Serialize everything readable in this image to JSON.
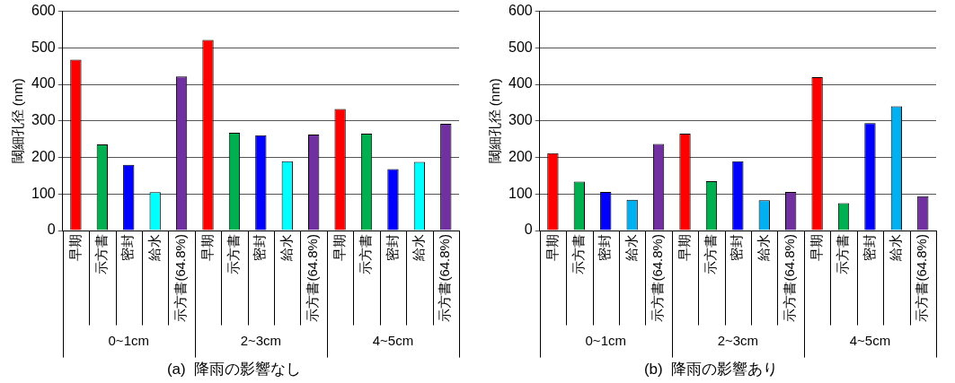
{
  "chart_data": [
    {
      "type": "bar",
      "title": "(a)  降雨の影響なし",
      "ylabel": "閾細孔径 (nm)",
      "categories": [
        "早期",
        "示方書",
        "密封",
        "給水",
        "示方書(64.8%)",
        "早期",
        "示方書",
        "密封",
        "給水",
        "示方書(64.8%)",
        "早期",
        "示方書",
        "密封",
        "給水",
        "示方書(64.8%)"
      ],
      "values": [
        468,
        236,
        180,
        105,
        422,
        522,
        268,
        261,
        190,
        263,
        333,
        265,
        168,
        188,
        292
      ],
      "colors": [
        "#ff0000",
        "#00b050",
        "#0000ff",
        "#00ffff",
        "#7030a0",
        "#ff0000",
        "#00b050",
        "#0000ff",
        "#00ffff",
        "#7030a0",
        "#ff0000",
        "#00b050",
        "#0000ff",
        "#00ffff",
        "#7030a0"
      ],
      "annotations": [
        "0~1cm",
        "2~3cm",
        "4~5cm"
      ],
      "ylim": [
        0,
        600
      ],
      "yticks": [
        0,
        100,
        200,
        300,
        400,
        500,
        600
      ],
      "grid": "y",
      "legend": false
    },
    {
      "type": "bar",
      "title": "(b)  降雨の影響あり",
      "ylabel": "閾細孔径 (nm)",
      "categories": [
        "早期",
        "示方書",
        "密封",
        "給水",
        "示方書(64.8%)",
        "早期",
        "示方書",
        "密封",
        "給水",
        "示方書(64.8%)",
        "早期",
        "示方書",
        "密封",
        "給水",
        "示方書(64.8%)"
      ],
      "values": [
        212,
        134,
        106,
        84,
        237,
        265,
        135,
        190,
        83,
        106,
        420,
        75,
        294,
        340,
        94
      ],
      "colors": [
        "#ff0000",
        "#00b050",
        "#0000ff",
        "#00b0f0",
        "#7030a0",
        "#ff0000",
        "#00b050",
        "#0000ff",
        "#00b0f0",
        "#7030a0",
        "#ff0000",
        "#00b050",
        "#0000ff",
        "#00b0f0",
        "#7030a0"
      ],
      "annotations": [
        "0~1cm",
        "2~3cm",
        "4~5cm"
      ],
      "ylim": [
        0,
        600
      ],
      "yticks": [
        0,
        100,
        200,
        300,
        400,
        500,
        600
      ],
      "grid": "y",
      "legend": false
    }
  ]
}
